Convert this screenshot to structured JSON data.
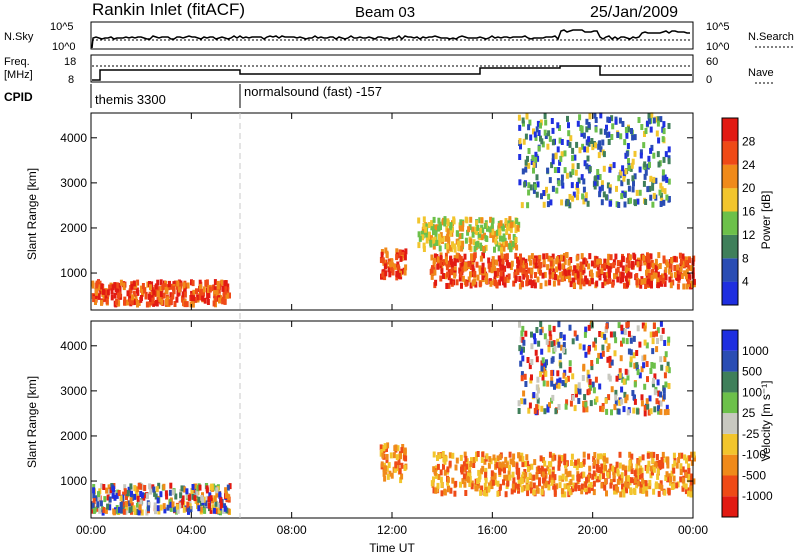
{
  "header": {
    "station": "Rankin Inlet (fitACF)",
    "beam": "Beam 03",
    "date": "25/Jan/2009"
  },
  "panel_labels": {
    "nsky": "N.Sky",
    "nsearch": "N.Search",
    "freq_l1": "Freq.",
    "freq_l2": "[MHz]",
    "nave": "Nave",
    "cpid": "CPID",
    "nsky_ticks": [
      "10^5",
      "10^0"
    ],
    "nsearch_ticks": [
      "10^5",
      "10^0"
    ],
    "freq_ticks": [
      "18",
      "8"
    ],
    "nave_ticks": [
      "60",
      "0"
    ]
  },
  "cpid_segments": [
    "themis 3300",
    "normalsound (fast) -157"
  ],
  "colors": {
    "power": [
      "#1f2fe0",
      "#2a4db3",
      "#3f7f5a",
      "#6cc04a",
      "#f2c52d",
      "#f08a1a",
      "#ef4a17",
      "#e21a12"
    ],
    "velocity": [
      "#e21a12",
      "#ef4a17",
      "#f08a1a",
      "#f2c52d",
      "#c8c8c0",
      "#6cc04a",
      "#3f7f5a",
      "#2a4db3",
      "#1f2fe0"
    ]
  },
  "chart_data": [
    {
      "type": "heatmap",
      "title": "Power",
      "xlabel": "",
      "ylabel": "Slant Range [km]",
      "xlim": [
        "00:00",
        "24:00"
      ],
      "ylim": [
        180,
        4550
      ],
      "x_ticks": [
        "00:00",
        "04:00",
        "08:00",
        "12:00",
        "16:00",
        "20:00",
        "00:00"
      ],
      "y_ticks": [
        1000,
        2000,
        3000,
        4000
      ],
      "colorbar": {
        "label": "Power [dB]",
        "ticks": [
          4,
          8,
          12,
          16,
          20,
          24,
          28
        ]
      },
      "regions": [
        {
          "t": [
            0.0,
            5.5
          ],
          "r": [
            300,
            800
          ],
          "level": "high"
        },
        {
          "t": [
            11.5,
            12.5
          ],
          "r": [
            900,
            1500
          ],
          "level": "high"
        },
        {
          "t": [
            13.5,
            24.0
          ],
          "r": [
            700,
            1400
          ],
          "level": "high"
        },
        {
          "t": [
            13.0,
            17.0
          ],
          "r": [
            1500,
            2200
          ],
          "level": "mid"
        },
        {
          "t": [
            17.0,
            23.0
          ],
          "r": [
            2500,
            4500
          ],
          "level": "low"
        }
      ]
    },
    {
      "type": "heatmap",
      "title": "Velocity",
      "xlabel": "Time UT",
      "ylabel": "Slant Range [km]",
      "xlim": [
        "00:00",
        "24:00"
      ],
      "ylim": [
        180,
        4550
      ],
      "x_ticks": [
        "00:00",
        "04:00",
        "08:00",
        "12:00",
        "16:00",
        "20:00",
        "00:00"
      ],
      "y_ticks": [
        1000,
        2000,
        3000,
        4000
      ],
      "colorbar": {
        "label": "Velocity [m s⁻¹]",
        "ticks": [
          "1000",
          "500",
          "100",
          "25",
          "-25",
          "-100",
          "-500",
          "-1000"
        ]
      },
      "regions": [
        {
          "t": [
            0.0,
            5.5
          ],
          "r": [
            300,
            900
          ],
          "level": "mixed"
        },
        {
          "t": [
            11.5,
            12.5
          ],
          "r": [
            1000,
            1800
          ],
          "level": "negative"
        },
        {
          "t": [
            13.5,
            24.0
          ],
          "r": [
            700,
            1600
          ],
          "level": "negative"
        },
        {
          "t": [
            17.0,
            23.0
          ],
          "r": [
            2500,
            4500
          ],
          "level": "mixed"
        }
      ]
    }
  ]
}
